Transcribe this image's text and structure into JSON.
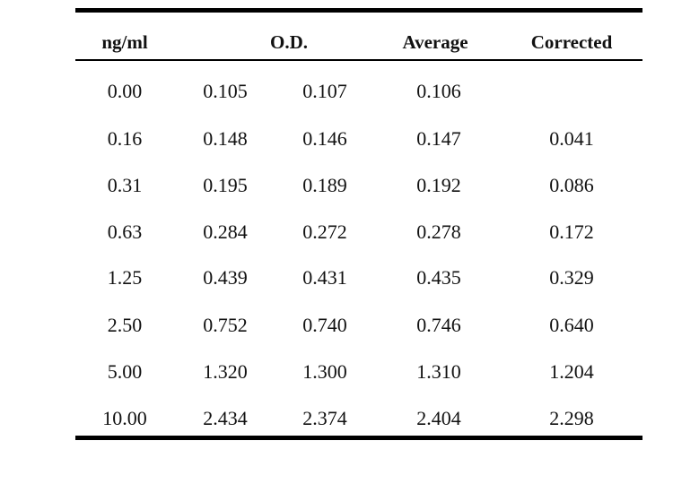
{
  "table": {
    "headers": {
      "conc": "ng/ml",
      "od": "O.D.",
      "average": "Average",
      "corrected": "Corrected"
    },
    "rows": [
      {
        "conc": "0.00",
        "od1": "0.105",
        "od2": "0.107",
        "average": "0.106",
        "corrected": ""
      },
      {
        "conc": "0.16",
        "od1": "0.148",
        "od2": "0.146",
        "average": "0.147",
        "corrected": "0.041"
      },
      {
        "conc": "0.31",
        "od1": "0.195",
        "od2": "0.189",
        "average": "0.192",
        "corrected": "0.086"
      },
      {
        "conc": "0.63",
        "od1": "0.284",
        "od2": "0.272",
        "average": "0.278",
        "corrected": "0.172"
      },
      {
        "conc": "1.25",
        "od1": "0.439",
        "od2": "0.431",
        "average": "0.435",
        "corrected": "0.329"
      },
      {
        "conc": "2.50",
        "od1": "0.752",
        "od2": "0.740",
        "average": "0.746",
        "corrected": "0.640"
      },
      {
        "conc": "5.00",
        "od1": "1.320",
        "od2": "1.300",
        "average": "1.310",
        "corrected": "1.204"
      },
      {
        "conc": "10.00",
        "od1": "2.434",
        "od2": "2.374",
        "average": "2.404",
        "corrected": "2.298"
      }
    ]
  }
}
